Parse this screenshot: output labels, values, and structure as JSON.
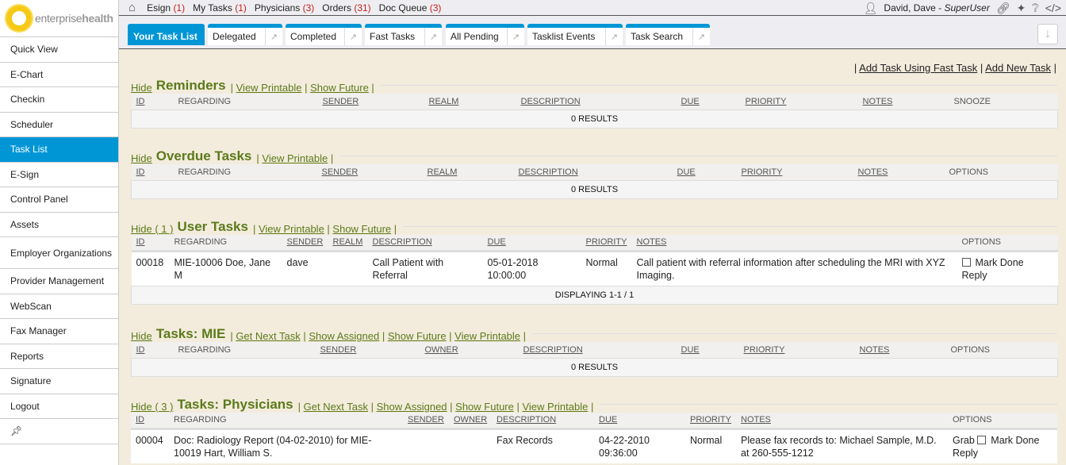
{
  "logo": {
    "text_light": "enterprise",
    "text_bold": "health"
  },
  "sidebar": {
    "items": [
      {
        "label": "Quick View"
      },
      {
        "label": "E-Chart"
      },
      {
        "label": "Checkin"
      },
      {
        "label": "Scheduler"
      },
      {
        "label": "Task List",
        "active": true
      },
      {
        "label": "E-Sign"
      },
      {
        "label": "Control Panel"
      },
      {
        "label": "Assets"
      },
      {
        "label": "Employer Organizations"
      },
      {
        "label": "Provider Management"
      },
      {
        "label": "WebScan"
      },
      {
        "label": "Fax Manager"
      },
      {
        "label": "Reports"
      },
      {
        "label": "Signature"
      },
      {
        "label": "Logout"
      }
    ],
    "pin_icon": "pin-icon"
  },
  "topbar": {
    "links": [
      {
        "label": "Esign",
        "count": "(1)"
      },
      {
        "label": "My Tasks",
        "count": "(1)"
      },
      {
        "label": "Physicians",
        "count": "(3)"
      },
      {
        "label": "Orders",
        "count": "(31)"
      },
      {
        "label": "Doc Queue",
        "count": "(3)"
      }
    ],
    "user": {
      "name": "David, Dave - ",
      "role": "SuperUser"
    }
  },
  "tabs": [
    {
      "label": "Your Task List",
      "active": true
    },
    {
      "label": "Delegated"
    },
    {
      "label": "Completed"
    },
    {
      "label": "Fast Tasks"
    },
    {
      "label": "All Pending"
    },
    {
      "label": "Tasklist Events"
    },
    {
      "label": "Task Search"
    }
  ],
  "actions": {
    "fast_task": "Add Task Using Fast Task",
    "new_task": "Add New Task"
  },
  "colors": {
    "accent": "#0096d6",
    "section_title": "#5c7a1a",
    "count": "#c8201b",
    "background": "#f3ecdd"
  },
  "sections": [
    {
      "hide": "Hide",
      "title": "Reminders",
      "links": [
        "View Printable",
        "Show Future"
      ],
      "columns": [
        "ID",
        "REGARDING",
        "SENDER",
        "REALM",
        "DESCRIPTION",
        "DUE",
        "PRIORITY",
        "NOTES",
        "SNOOZE"
      ],
      "rows": [],
      "footer": "0 RESULTS"
    },
    {
      "hide": "Hide",
      "title": "Overdue Tasks",
      "links": [
        "View Printable"
      ],
      "columns": [
        "ID",
        "REGARDING",
        "SENDER",
        "REALM",
        "DESCRIPTION",
        "DUE",
        "PRIORITY",
        "NOTES",
        "OPTIONS"
      ],
      "rows": [],
      "footer": "0 RESULTS"
    },
    {
      "hide": "Hide ( 1 )",
      "title": "User Tasks",
      "links": [
        "View Printable",
        "Show Future"
      ],
      "columns": [
        "ID",
        "REGARDING",
        "SENDER",
        "REALM",
        "DESCRIPTION",
        "DUE",
        "PRIORITY",
        "NOTES",
        "OPTIONS"
      ],
      "rows": [
        {
          "cells": [
            "00018",
            "MIE-10006 Doe, Jane M",
            "dave",
            "",
            "Call Patient with Referral",
            "05-01-2018 10:00:00",
            "Normal",
            "Call patient with referral information after scheduling the MRI with XYZ Imaging."
          ],
          "options": {
            "mark_done": "Mark Done",
            "reply": "Reply"
          }
        }
      ],
      "footer": "DISPLAYING 1-1 / 1"
    },
    {
      "hide": "Hide",
      "title": "Tasks: MIE",
      "links": [
        "Get Next Task",
        "Show Assigned",
        "Show Future",
        "View Printable"
      ],
      "columns": [
        "ID",
        "REGARDING",
        "SENDER",
        "OWNER",
        "DESCRIPTION",
        "DUE",
        "PRIORITY",
        "NOTES",
        "OPTIONS"
      ],
      "rows": [],
      "footer": "0 RESULTS"
    },
    {
      "hide": "Hide ( 3 )",
      "title": "Tasks: Physicians",
      "links": [
        "Get Next Task",
        "Show Assigned",
        "Show Future",
        "View Printable"
      ],
      "columns": [
        "ID",
        "REGARDING",
        "SENDER",
        "OWNER",
        "DESCRIPTION",
        "DUE",
        "PRIORITY",
        "NOTES",
        "OPTIONS"
      ],
      "rows": [
        {
          "cells": [
            "00004",
            "Doc: Radiology Report (04-02-2010) for MIE-10019 Hart, William S.",
            "",
            "",
            "Fax Records",
            "04-22-2010 09:36:00",
            "Normal",
            "Please fax records to: Michael Sample, M.D. at 260-555-1212"
          ],
          "options": {
            "grab": "Grab",
            "mark_done": "Mark Done",
            "reply": "Reply"
          }
        }
      ],
      "footer": ""
    }
  ]
}
